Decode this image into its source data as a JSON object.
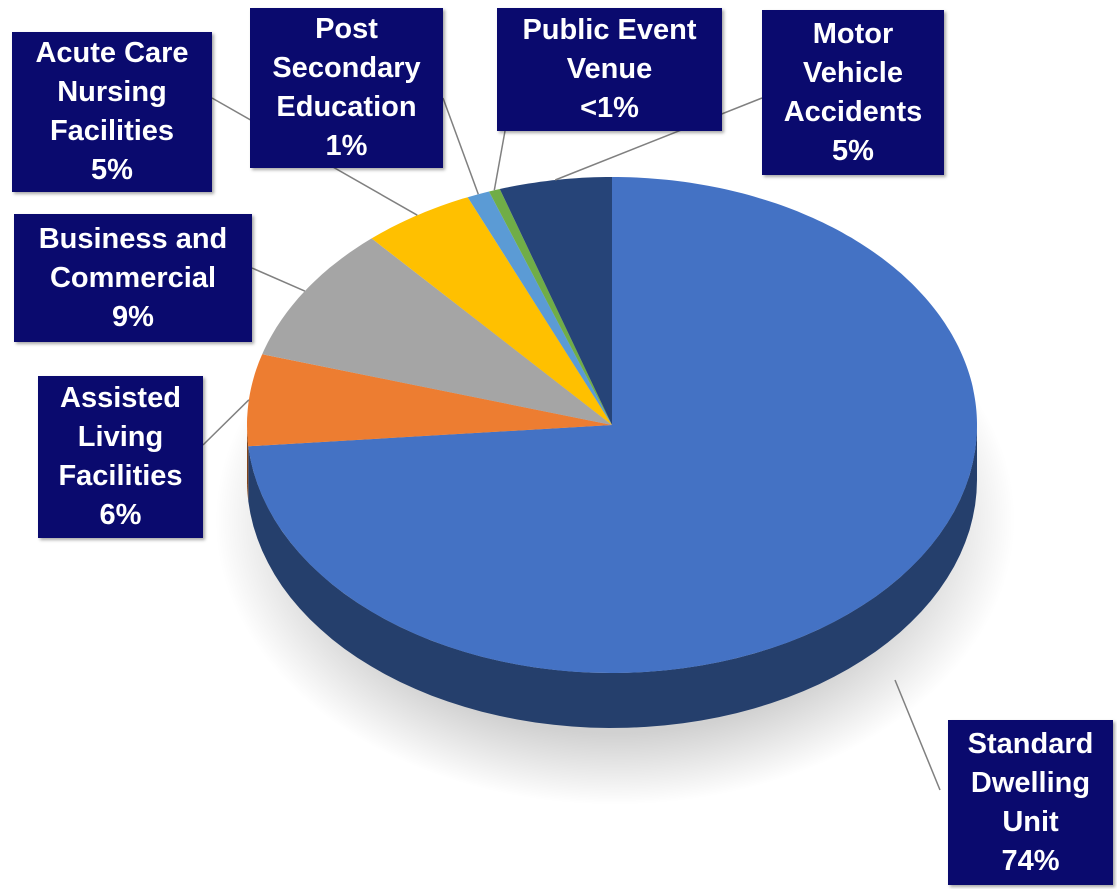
{
  "chart_data": {
    "type": "pie",
    "categories": [
      "Standard Dwelling Unit",
      "Assisted Living Facilities",
      "Business and Commercial",
      "Acute Care Nursing Facilities",
      "Post Secondary Education",
      "Public Event Venue",
      "Motor Vehicle Accidents"
    ],
    "values": [
      74,
      6,
      9,
      5,
      1,
      0.5,
      5
    ],
    "value_labels": [
      "74%",
      "6%",
      "9%",
      "5%",
      "1%",
      "<1%",
      "5%"
    ],
    "colors": [
      "#4472c4",
      "#ed7d31",
      "#a5a5a5",
      "#ffc000",
      "#5b9bd5",
      "#70ad47",
      "#264478"
    ]
  }
}
